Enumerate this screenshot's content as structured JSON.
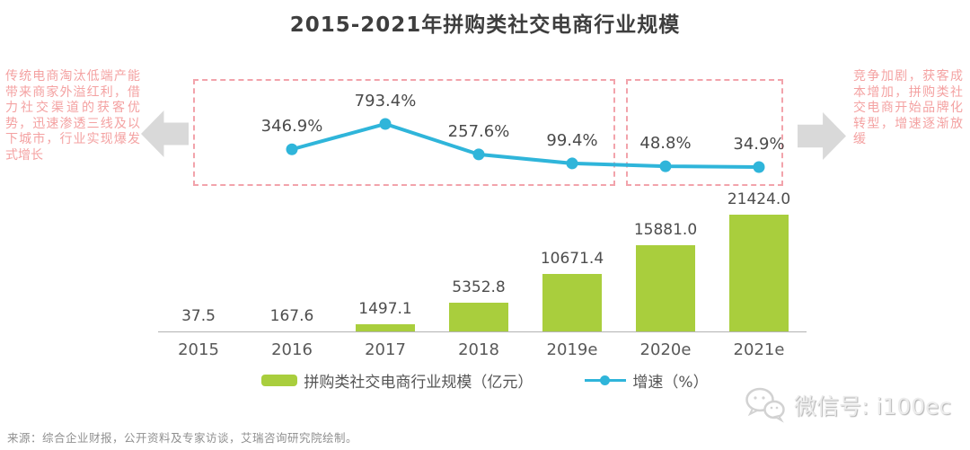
{
  "title": "2015-2021年拼购类社交电商行业规模",
  "annotations": {
    "left": "传统电商淘汰低端产能带来商家外溢红利，借力社交渠道的获客优势，迅速渗透三线及以下城市，行业实现爆发式增长",
    "right": "竞争加剧，获客成本增加，拼购类社交电商开始品牌化转型，增速逐渐放缓"
  },
  "chart_data": {
    "type": "bar+line",
    "categories": [
      "2015",
      "2016",
      "2017",
      "2018",
      "2019e",
      "2020e",
      "2021e"
    ],
    "series": [
      {
        "name": "拼购类社交电商行业规模（亿元）",
        "type": "bar",
        "values": [
          37.5,
          167.6,
          1497.1,
          5352.8,
          10671.4,
          15881.0,
          21424.0
        ],
        "labels": [
          "37.5",
          "167.6",
          "1497.1",
          "5352.8",
          "10671.4",
          "15881.0",
          "21424.0"
        ]
      },
      {
        "name": "增速（%）",
        "type": "line",
        "values": [
          null,
          346.9,
          793.4,
          257.6,
          99.4,
          48.8,
          34.9
        ],
        "labels": [
          "",
          "346.9%",
          "793.4%",
          "257.6%",
          "99.4%",
          "48.8%",
          "34.9%"
        ]
      }
    ],
    "ylim_bar": [
      0,
      22000
    ],
    "grid": false,
    "legend_position": "bottom"
  },
  "legend": [
    {
      "label": "拼购类社交电商行业规模（亿元）",
      "swatch": "bar"
    },
    {
      "label": "增速（%）",
      "swatch": "line"
    }
  ],
  "source": "来源：综合企业财报，公开资料及专家访谈，艾瑞咨询研究院绘制。",
  "watermark": {
    "icon": "wechat-icon",
    "text": "微信号: i100ec"
  },
  "colors": {
    "bar_green": "#a9ce3d",
    "line_blue": "#2fb5da",
    "dash_pink": "#f2a3ab",
    "annotation_pink": "#f4a2a2",
    "arrow_gray": "#d9d9d9",
    "title_gray": "#3e3e3e"
  }
}
